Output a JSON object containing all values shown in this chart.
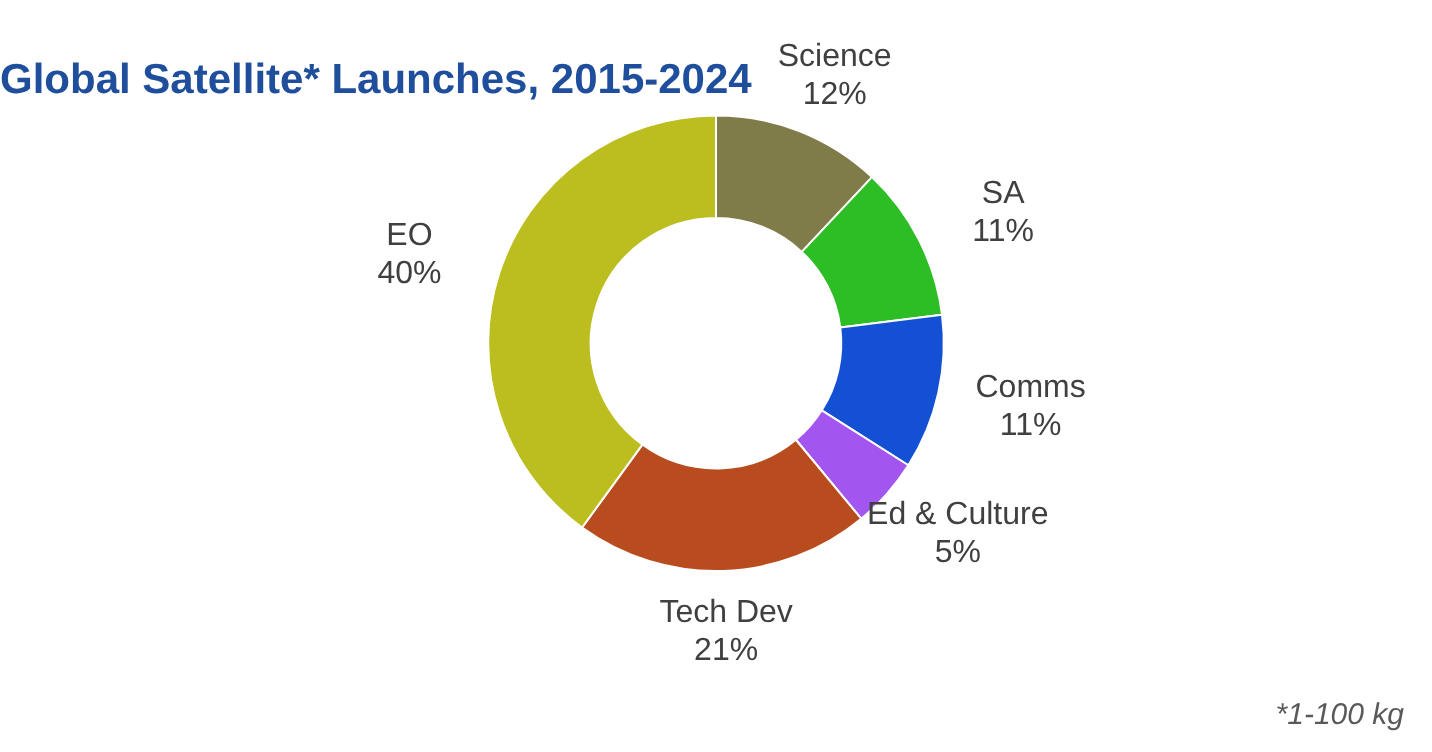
{
  "chart_data": {
    "type": "donut",
    "title": "Global Satellite* Launches, 2015-2024",
    "categories": [
      "Science",
      "SA",
      "Comms",
      "Ed & Culture",
      "Tech Dev",
      "EO"
    ],
    "values": [
      12,
      11,
      11,
      5,
      21,
      40
    ],
    "value_labels": [
      "12%",
      "11%",
      "11%",
      "5%",
      "21%",
      "40%"
    ],
    "colors": [
      "#807c4a",
      "#2dbd25",
      "#1450d4",
      "#a355f0",
      "#b84c1e",
      "#bbbe1e"
    ],
    "annotations": [
      "*1-100 kg"
    ],
    "legend": false
  }
}
